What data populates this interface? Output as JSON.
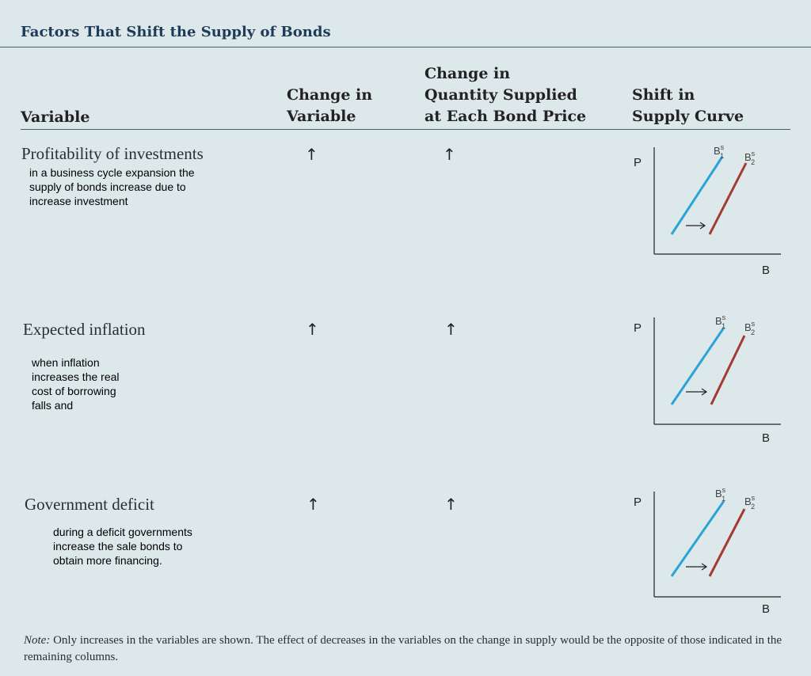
{
  "title": "Factors That Shift the Supply of Bonds",
  "headers": {
    "variable": "Variable",
    "change_line1": "Change in",
    "change_line2": "Variable",
    "qty_line1": "Change in",
    "qty_line2": "Quantity Supplied",
    "qty_line3": "at Each Bond Price",
    "shift_line1": "Shift in",
    "shift_line2": "Supply Curve"
  },
  "rows": [
    {
      "variable": "Profitability of investments",
      "note_lines": [
        "in a business cycle expansion the",
        "supply of bonds increase due to",
        "increase investment"
      ],
      "change_in_variable": "↑",
      "change_in_quantity": "↑"
    },
    {
      "variable": "Expected inflation",
      "note_lines": [
        "when inflation",
        "increases the real",
        "cost of borrowing",
        "falls and"
      ],
      "change_in_variable": "↑",
      "change_in_quantity": "↑"
    },
    {
      "variable": "Government deficit",
      "note_lines": [
        "during a deficit governments",
        "increase the sale bonds to",
        "obtain more financing."
      ],
      "change_in_variable": "↑",
      "change_in_quantity": "↑"
    }
  ],
  "graph_labels": {
    "p_axis": "P",
    "b_axis": "B",
    "curve1_main": "B",
    "curve1_sup": "s",
    "curve1_sub": "1",
    "curve2_main": "B",
    "curve2_sup": "s",
    "curve2_sub": "2"
  },
  "colors": {
    "curve1": "#2aa3d6",
    "curve2": "#a23b32",
    "title": "#1f3b5a"
  },
  "footnote": {
    "label": "Note:",
    "text": " Only increases in the variables are shown. The effect of decreases in the variables on the change in supply would be the opposite of those indicated in the remaining columns."
  }
}
